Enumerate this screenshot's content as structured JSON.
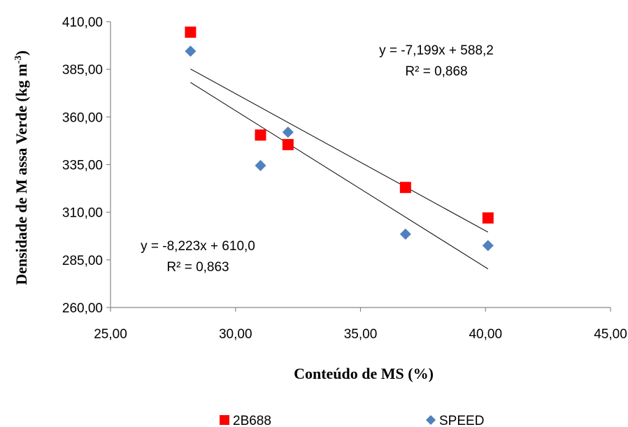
{
  "chart_data": {
    "type": "scatter",
    "xlabel": "Conteúdo de MS (%)",
    "ylabel": "Densidade de M assa Verde  (kg m",
    "ylabel_sup": "-3",
    "ylabel_close": ")",
    "xlim": [
      25,
      45
    ],
    "ylim": [
      260,
      410
    ],
    "x_ticks": [
      25,
      30,
      35,
      40,
      45
    ],
    "y_ticks": [
      260,
      285,
      310,
      335,
      360,
      385,
      410
    ],
    "x_tick_labels": [
      "25,00",
      "30,00",
      "35,00",
      "40,00",
      "45,00"
    ],
    "y_tick_labels": [
      "260,00",
      "285,00",
      "310,00",
      "335,00",
      "360,00",
      "385,00",
      "410,00"
    ],
    "grid": false,
    "legend_position": "bottom",
    "series": [
      {
        "name": "2B688",
        "marker": "square",
        "color": "#ff0000",
        "x": [
          28.2,
          31.0,
          32.1,
          36.8,
          40.1
        ],
        "y": [
          404.5,
          350.5,
          345.5,
          323.0,
          307.0
        ],
        "trendline": {
          "slope": -7.199,
          "intercept": 588.2,
          "x_range": [
            28.2,
            40.1
          ],
          "equation": "y = -7,199x + 588,2",
          "r2_label": "R² = 0,868"
        }
      },
      {
        "name": "SPEED",
        "marker": "diamond",
        "color": "#4f81bd",
        "x": [
          28.2,
          31.0,
          32.1,
          36.8,
          40.1
        ],
        "y": [
          394.5,
          334.5,
          352.0,
          298.5,
          292.5
        ],
        "trendline": {
          "slope": -8.223,
          "intercept": 610.0,
          "x_range": [
            28.2,
            40.1
          ],
          "equation": "y = -8,223x + 610,0",
          "r2_label": "R² = 0,863"
        }
      }
    ]
  }
}
